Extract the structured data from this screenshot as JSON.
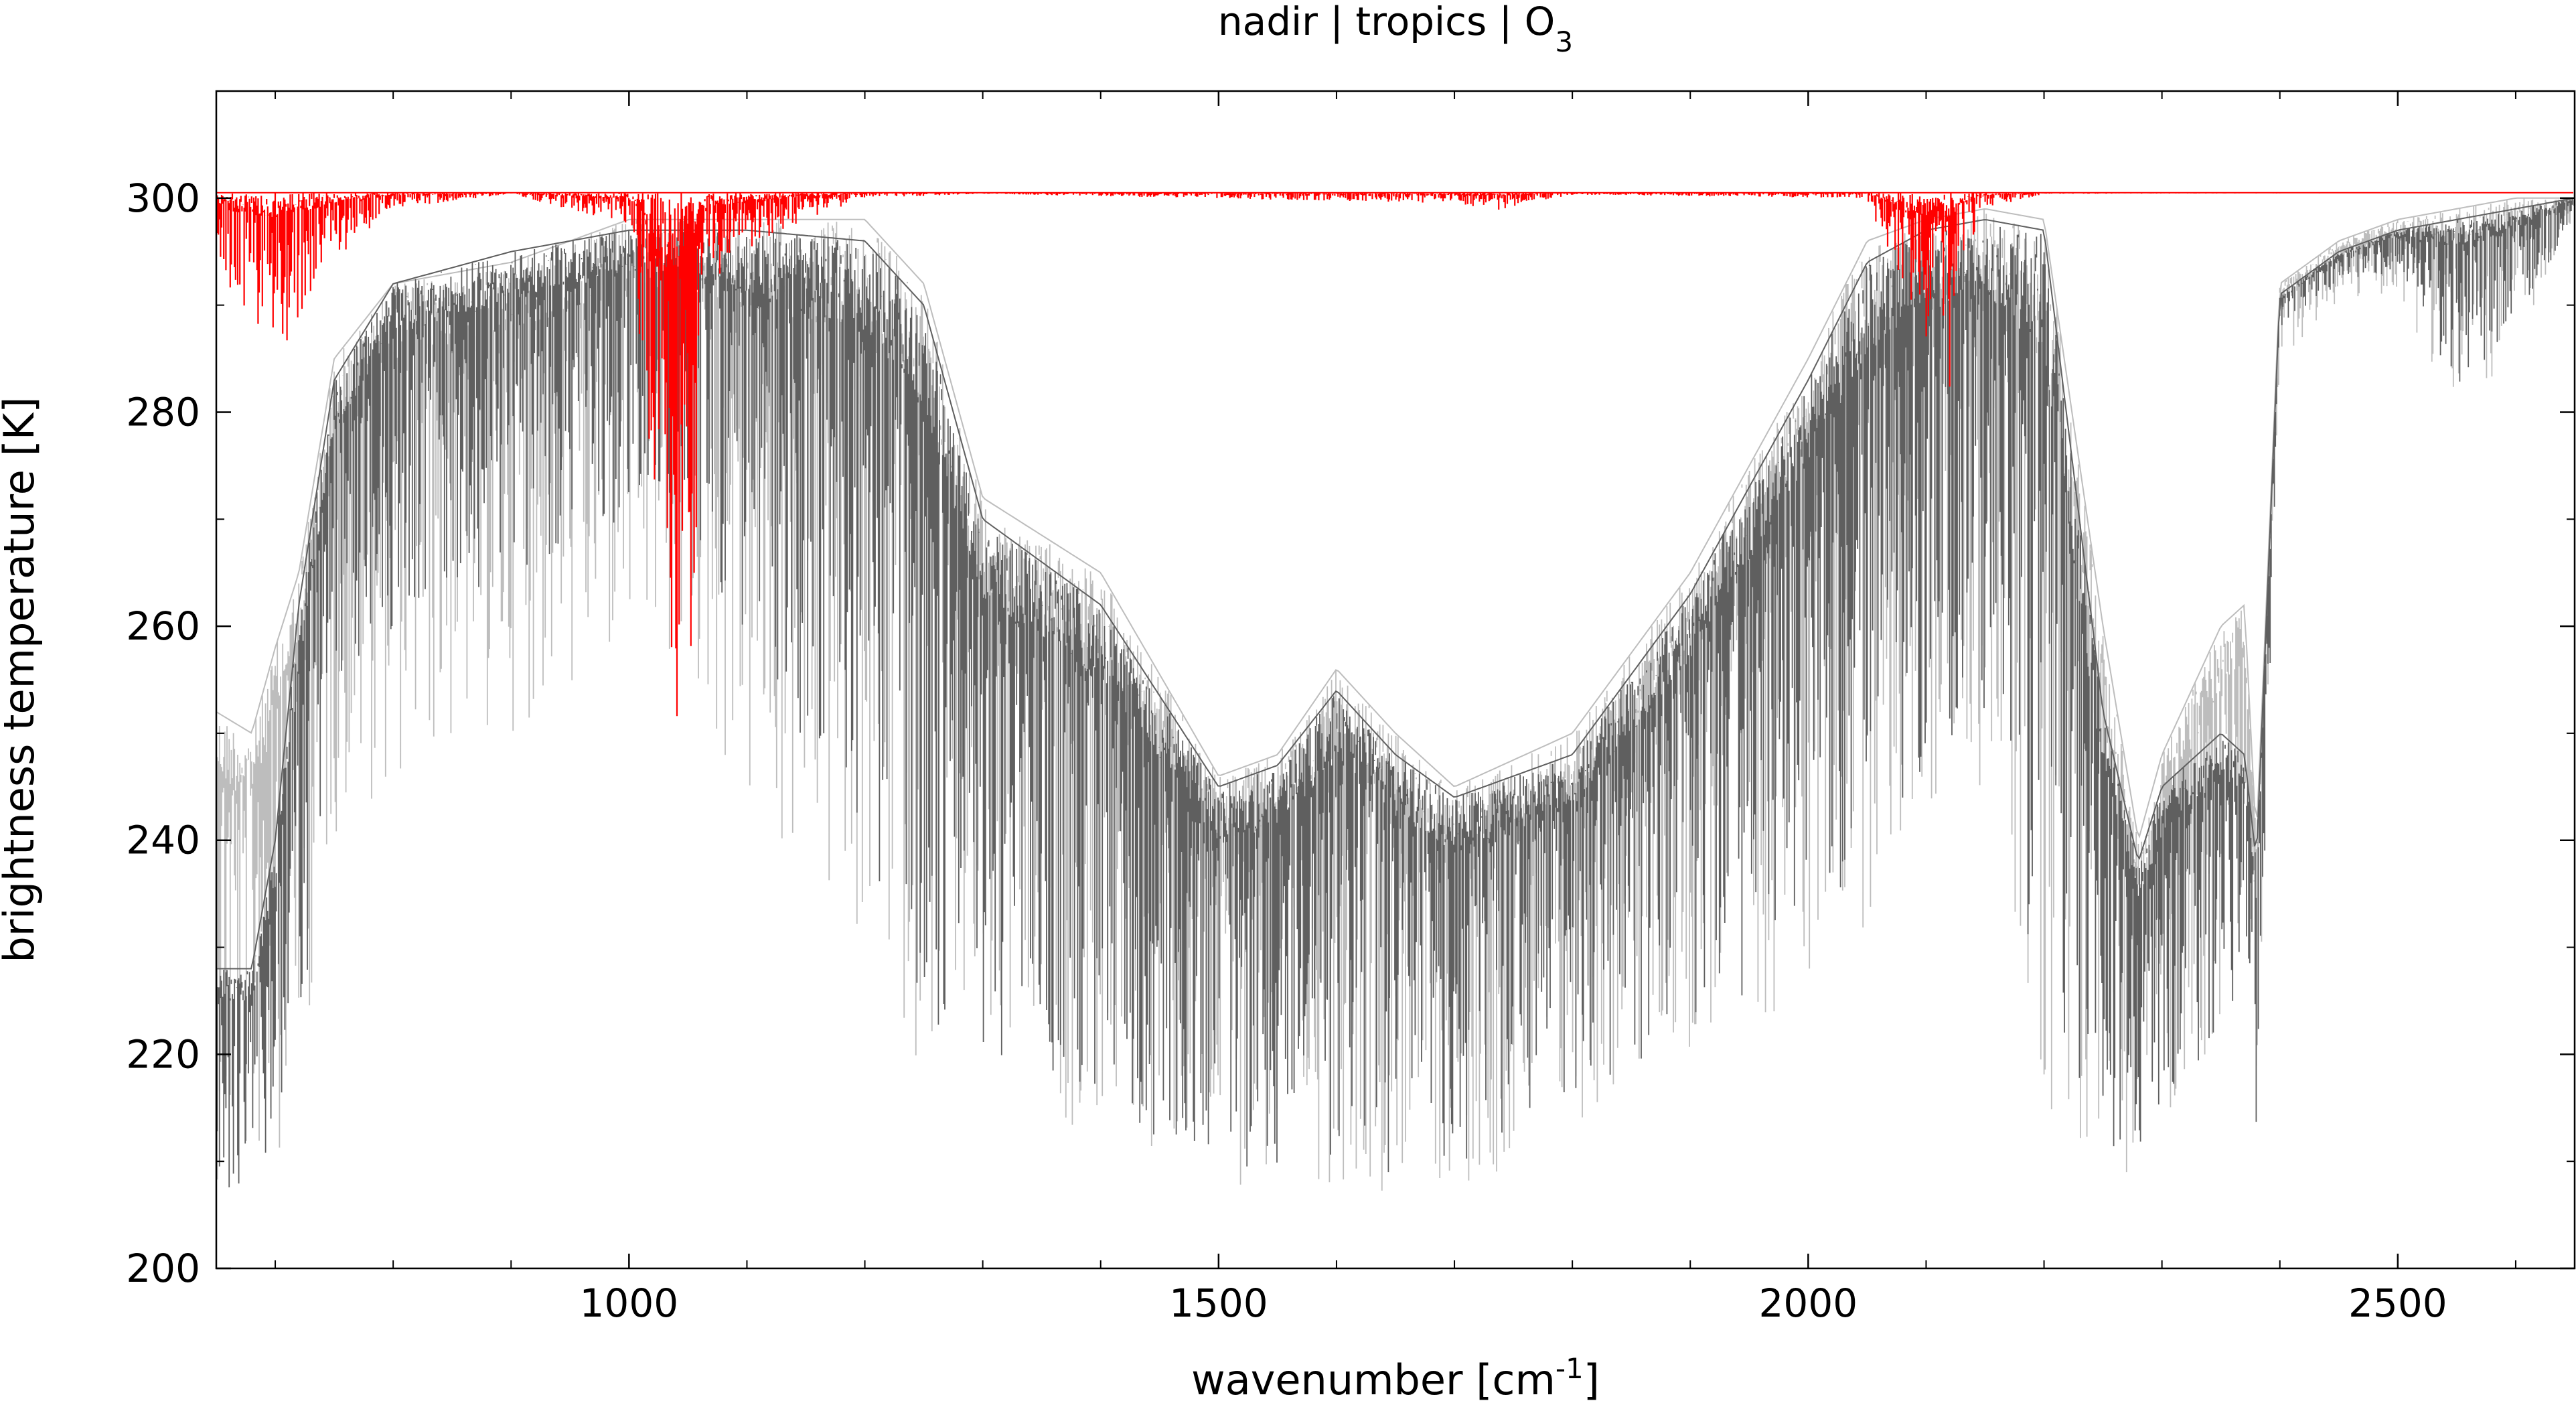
{
  "chart_data": {
    "type": "line",
    "title": "nadir | tropics | O",
    "title_sub": "3",
    "xlabel": "wavenumber [cm",
    "xlabel_sup": "-1",
    "xlabel_end": "]",
    "ylabel": "brightness temperature [K]",
    "xlim": [
      650,
      2650
    ],
    "ylim": [
      200,
      310
    ],
    "xticks": [
      "1000",
      "1500",
      "2000",
      "2500"
    ],
    "yticks": [
      "200",
      "220",
      "240",
      "260",
      "280",
      "300"
    ],
    "grid": false,
    "legend": "none",
    "series": [
      {
        "color": "#bdbdbd",
        "style": "envelope",
        "x": [
          650,
          680,
          700,
          720,
          750,
          800,
          900,
          1000,
          1050,
          1100,
          1200,
          1250,
          1300,
          1400,
          1500,
          1550,
          1600,
          1650,
          1700,
          1800,
          1900,
          2000,
          2050,
          2100,
          2150,
          2200,
          2250,
          2280,
          2300,
          2350,
          2370,
          2380,
          2400,
          2450,
          2500,
          2550,
          2600,
          2650
        ],
        "y_max": [
          252,
          250,
          258,
          265,
          285,
          292,
          294,
          298,
          298,
          298,
          298,
          292,
          272,
          265,
          246,
          248,
          256,
          250,
          245,
          250,
          265,
          285,
          296,
          298,
          299,
          298,
          260,
          240,
          248,
          260,
          262,
          240,
          292,
          296,
          298,
          299,
          300,
          300
        ],
        "y_min": [
          208,
          208,
          210,
          216,
          240,
          245,
          250,
          255,
          255,
          240,
          228,
          218,
          216,
          212,
          208,
          207,
          208,
          207,
          207,
          212,
          220,
          225,
          232,
          240,
          245,
          215,
          210,
          208,
          213,
          220,
          228,
          212,
          285,
          290,
          291,
          280,
          285,
          298
        ]
      },
      {
        "color": "#5f5f5f",
        "style": "envelope",
        "x": [
          650,
          680,
          700,
          720,
          750,
          800,
          900,
          1000,
          1050,
          1100,
          1200,
          1250,
          1300,
          1400,
          1500,
          1550,
          1600,
          1650,
          1700,
          1800,
          1900,
          2000,
          2050,
          2100,
          2150,
          2200,
          2250,
          2280,
          2300,
          2350,
          2370,
          2380,
          2400,
          2450,
          2500,
          2550,
          2600,
          2650
        ],
        "y_max": [
          228,
          228,
          240,
          262,
          283,
          292,
          295,
          297,
          297,
          297,
          296,
          290,
          270,
          262,
          245,
          247,
          254,
          248,
          244,
          248,
          263,
          283,
          294,
          297,
          298,
          297,
          252,
          238,
          245,
          250,
          248,
          238,
          291,
          295,
          297,
          298,
          299,
          300
        ],
        "y_min": [
          207,
          207,
          210,
          220,
          250,
          260,
          265,
          270,
          270,
          258,
          240,
          222,
          220,
          214,
          210,
          208,
          210,
          208,
          209,
          215,
          222,
          230,
          238,
          246,
          252,
          220,
          212,
          210,
          215,
          222,
          226,
          211,
          288,
          292,
          293,
          282,
          287,
          299
        ]
      },
      {
        "color": "#ff0000",
        "style": "envelope",
        "x": [
          650,
          680,
          700,
          720,
          750,
          800,
          900,
          1000,
          1010,
          1020,
          1030,
          1040,
          1045,
          1050,
          1055,
          1060,
          1070,
          1100,
          1150,
          1200,
          1300,
          1700,
          1720,
          1740,
          1760,
          1800,
          2050,
          2080,
          2100,
          2110,
          2120,
          2130,
          2150,
          2200,
          2650
        ],
        "y_max": [
          300.5,
          300.5,
          300.5,
          300.5,
          300.5,
          300.5,
          300.5,
          300.5,
          300.5,
          300.5,
          300.5,
          300.5,
          300.5,
          300.5,
          300.5,
          300.5,
          300.5,
          300.5,
          300.5,
          300.5,
          300.5,
          300.5,
          300.5,
          300.5,
          300.5,
          300.5,
          300.5,
          300.5,
          300.5,
          300.5,
          300.5,
          300.5,
          300.5,
          300.5,
          300.5
        ],
        "y_min": [
          294,
          288,
          285,
          288,
          294,
          299,
          300.4,
          297,
          285,
          268,
          252,
          244,
          256,
          262,
          246,
          290,
          292,
          295,
          298,
          300,
          300.4,
          299.5,
          299,
          298.8,
          299.5,
          300.3,
          300,
          290,
          286,
          292,
          282,
          294,
          299,
          300.4,
          300.5
        ]
      }
    ]
  }
}
